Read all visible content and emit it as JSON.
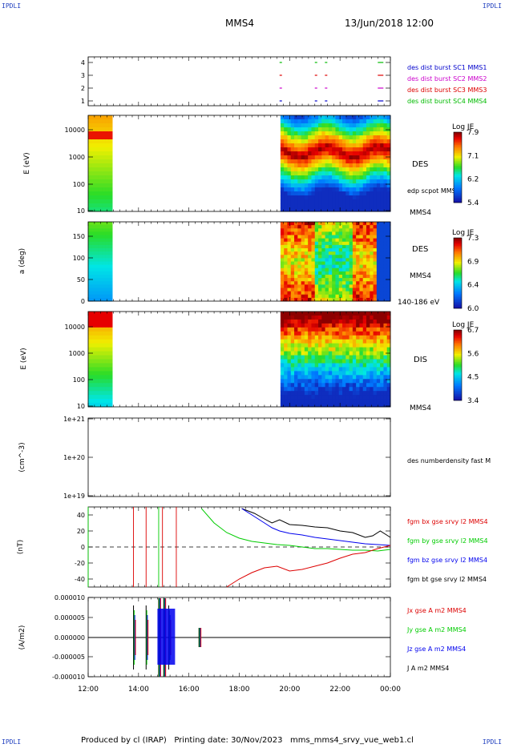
{
  "corners": {
    "tl": "IPDLI",
    "tr": "IPDLI",
    "bl": "IPDLI",
    "br": "IPDLI"
  },
  "header": {
    "spacecraft": "MMS4",
    "datetime": "13/Jun/2018 12:00"
  },
  "footer": {
    "text": "Produced by cl (IRAP)   Printing date: 30/Nov/2023   mms_mms4_srvy_vue_web1.cl"
  },
  "colors": {
    "mms1": "#0000cc",
    "mms2": "#cc00cc",
    "mms3": "#dd0000",
    "mms4": "#00bb00",
    "bx": "#dd0000",
    "by": "#00cc00",
    "bz": "#0000ee",
    "bt": "#000000"
  },
  "chart_data": [
    {
      "type": "scatter",
      "panel": "availability",
      "x": [
        "12:00",
        "14:00",
        "16:00",
        "18:00",
        "20:00",
        "22:00",
        "00:00"
      ],
      "yticks": [
        "1",
        "2",
        "3",
        "4"
      ],
      "legend": [
        {
          "label": "des dist burst SC1 MMS1",
          "color": "#0000cc"
        },
        {
          "label": "des dist burst SC2 MMS2",
          "color": "#cc00cc"
        },
        {
          "label": "des dist burst SC3 MMS3",
          "color": "#dd0000"
        },
        {
          "label": "des dist burst SC4 MMS4",
          "color": "#00bb00"
        }
      ],
      "marks_hours": [
        19.6,
        21.0,
        21.4,
        23.5
      ]
    },
    {
      "type": "heatmap",
      "panel": "des-energy",
      "ylabel": "E (eV)",
      "yticks": [
        "10",
        "100",
        "1000",
        "10000"
      ],
      "yscale": "log",
      "ylim": [
        10,
        30000
      ],
      "label": "DES",
      "sublabel": "edp scpot MMS4",
      "sc": "MMS4",
      "colorbar": {
        "title": "Log JE",
        "ticks": [
          "7.9",
          "7.1",
          "6.2",
          "5.4"
        ],
        "range": [
          5.4,
          7.9
        ]
      },
      "coverage_hours": [
        [
          12.0,
          12.9
        ],
        [
          19.6,
          24.0
        ]
      ]
    },
    {
      "type": "heatmap",
      "panel": "des-pitch",
      "ylabel": "a (deg)",
      "yticks": [
        "0",
        "50",
        "100",
        "150"
      ],
      "ylim": [
        0,
        180
      ],
      "label": "DES",
      "sc": "MMS4",
      "sublabel": "140-186 eV",
      "colorbar": {
        "title": "Log JE",
        "ticks": [
          "7.3",
          "6.9",
          "6.4",
          "6.0"
        ],
        "range": [
          6.0,
          7.3
        ]
      },
      "coverage_hours": [
        [
          12.0,
          12.9
        ],
        [
          19.6,
          24.0
        ]
      ]
    },
    {
      "type": "heatmap",
      "panel": "dis-energy",
      "ylabel": "E (eV)",
      "yticks": [
        "10",
        "100",
        "1000",
        "10000"
      ],
      "yscale": "log",
      "ylim": [
        10,
        30000
      ],
      "label": "DIS",
      "sc": "MMS4",
      "colorbar": {
        "title": "Log JE",
        "ticks": [
          "6.7",
          "5.6",
          "4.5",
          "3.4"
        ],
        "range": [
          3.4,
          6.7
        ]
      },
      "coverage_hours": [
        [
          12.0,
          12.9
        ],
        [
          19.6,
          24.0
        ]
      ]
    },
    {
      "type": "line",
      "panel": "density",
      "ylabel": "(cm^-3)",
      "yticks": [
        "1e+19",
        "1e+20",
        "1e+21"
      ],
      "yscale": "log",
      "legend": [
        {
          "label": "des numberdensity fast M",
          "color": "#000000"
        }
      ]
    },
    {
      "type": "line",
      "panel": "magnetic-field",
      "ylabel": "(nT)",
      "yticks": [
        "-40",
        "-20",
        "0",
        "20",
        "40"
      ],
      "ylim": [
        -50,
        50
      ],
      "legend": [
        {
          "label": "fgm bx gse srvy l2 MMS4",
          "color": "#dd0000"
        },
        {
          "label": "fgm by gse srvy l2 MMS4",
          "color": "#00cc00"
        },
        {
          "label": "fgm bz gse srvy l2 MMS4",
          "color": "#0000ee"
        },
        {
          "label": "fgm bt gse srvy l2 MMS4",
          "color": "#000000"
        }
      ],
      "series": [
        {
          "name": "fgm bt gse srvy l2 MMS4",
          "x": [
            18.1,
            18.6,
            19.0,
            19.3,
            19.6,
            20.0,
            20.5,
            21.0,
            21.5,
            22.0,
            22.5,
            23.0,
            23.3,
            23.6,
            24.0
          ],
          "values": [
            48,
            42,
            35,
            30,
            34,
            28,
            27,
            25,
            24,
            20,
            18,
            12,
            14,
            20,
            12
          ]
        },
        {
          "name": "fgm bz gse srvy l2 MMS4",
          "x": [
            18.1,
            18.6,
            19.0,
            19.3,
            19.6,
            20.0,
            20.5,
            21.0,
            21.5,
            22.0,
            22.5,
            23.0,
            23.5,
            24.0
          ],
          "values": [
            48,
            38,
            30,
            24,
            20,
            17,
            15,
            12,
            10,
            8,
            6,
            4,
            3,
            2
          ]
        },
        {
          "name": "fgm by gse srvy l2 MMS4",
          "x": [
            16.5,
            17.0,
            17.5,
            18.0,
            18.5,
            19.0,
            19.5,
            20.0,
            20.5,
            21.0,
            21.5,
            22.0,
            22.5,
            23.0,
            23.5,
            24.0
          ],
          "values": [
            48,
            30,
            18,
            11,
            7,
            5,
            3,
            2,
            0,
            -2,
            -2,
            -3,
            -4,
            -4,
            -5,
            -3
          ]
        },
        {
          "name": "fgm bx gse srvy l2 MMS4",
          "x": [
            17.5,
            18.0,
            18.5,
            19.0,
            19.5,
            20.0,
            20.5,
            21.0,
            21.5,
            22.0,
            22.5,
            23.0,
            23.5,
            24.0
          ],
          "values": [
            -50,
            -40,
            -32,
            -26,
            -24,
            -30,
            -28,
            -24,
            -20,
            -14,
            -9,
            -7,
            -2,
            2
          ]
        }
      ]
    },
    {
      "type": "line",
      "panel": "current",
      "ylabel": "(A/m2)",
      "yticks": [
        "-0.000010",
        "-0.000005",
        "0.000000",
        "0.000005",
        "0.000010"
      ],
      "ylim": [
        -1e-05,
        1e-05
      ],
      "legend": [
        {
          "label": "Jx gse A m2 MMS4",
          "color": "#dd0000"
        },
        {
          "label": "Jy gse A m2 MMS4",
          "color": "#00cc00"
        },
        {
          "label": "Jz gse A m2 MMS4",
          "color": "#0000ee"
        },
        {
          "label": "J A m2 MMS4",
          "color": "#000000"
        }
      ],
      "bursts_hours": [
        13.8,
        14.3,
        14.8,
        15.0,
        15.2,
        16.4
      ]
    }
  ],
  "xaxis": {
    "ticks": [
      "12:00",
      "14:00",
      "16:00",
      "18:00",
      "20:00",
      "22:00",
      "00:00"
    ],
    "range_hours": [
      12,
      24
    ]
  }
}
